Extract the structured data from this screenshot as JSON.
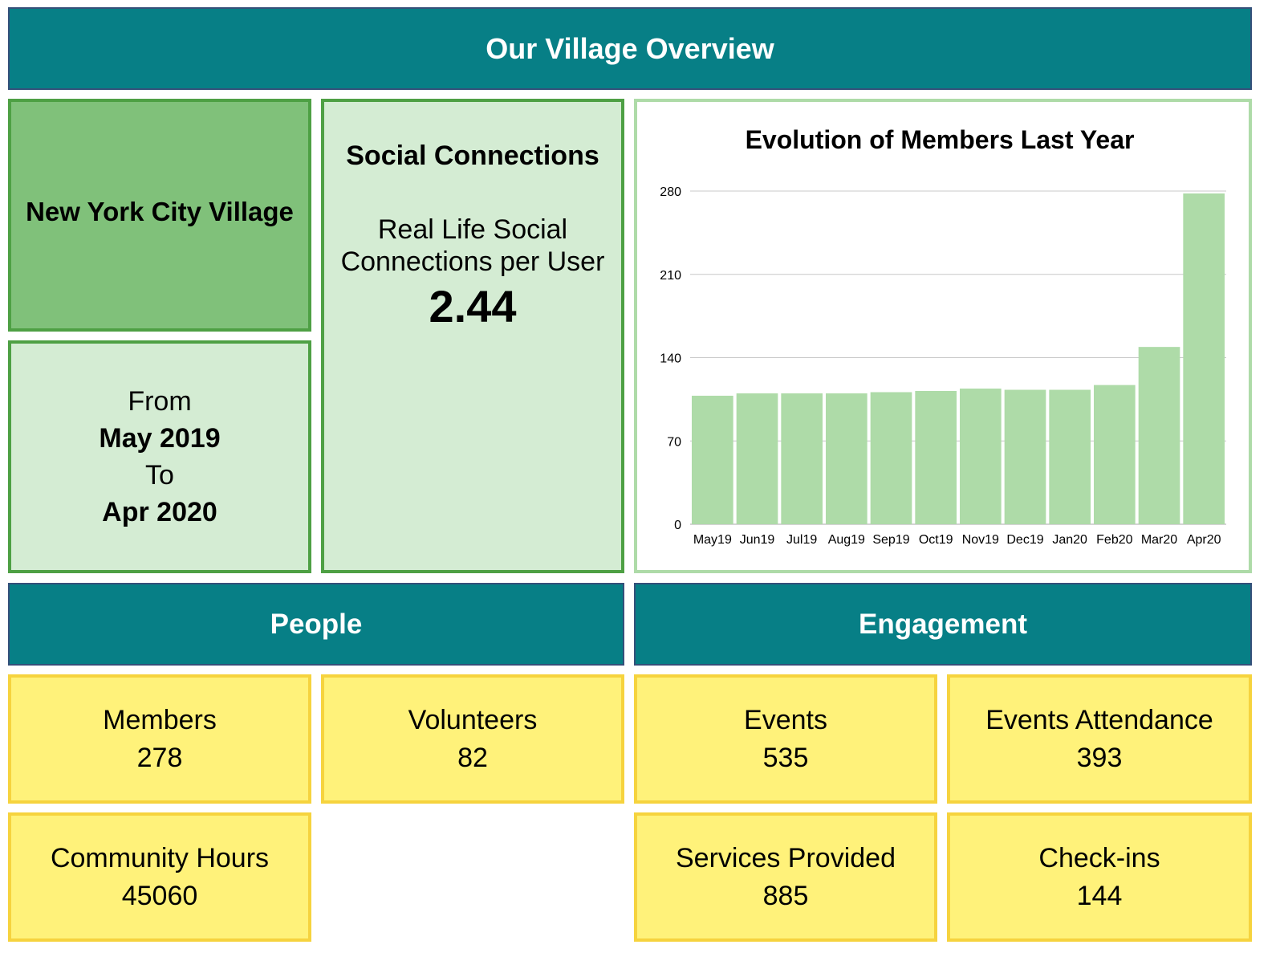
{
  "header": {
    "title": "Our Village Overview"
  },
  "village": {
    "name": "New York City Village"
  },
  "period": {
    "from_label": "From",
    "from_value": "May 2019",
    "to_label": "To",
    "to_value": "Apr 2020"
  },
  "social": {
    "title": "Social Connections",
    "subtitle_line1": "Real Life Social",
    "subtitle_line2": "Connections per User",
    "value": "2.44"
  },
  "sections": {
    "people": "People",
    "engagement": "Engagement"
  },
  "people": {
    "members": {
      "label": "Members",
      "value": "278"
    },
    "volunteers": {
      "label": "Volunteers",
      "value": "82"
    },
    "community_hours": {
      "label": "Community Hours",
      "value": "45060"
    }
  },
  "engagement": {
    "events": {
      "label": "Events",
      "value": "535"
    },
    "events_attendance": {
      "label": "Events Attendance",
      "value": "393"
    },
    "services_provided": {
      "label": "Services Provided",
      "value": "885"
    },
    "check_ins": {
      "label": "Check-ins",
      "value": "144"
    }
  },
  "colors": {
    "bar": "#aedba8",
    "header": "#077f86",
    "grid": "#c8c8c8"
  },
  "chart_data": {
    "type": "bar",
    "title": "Evolution of Members Last Year",
    "xlabel": "",
    "ylabel": "",
    "categories": [
      "May19",
      "Jun19",
      "Jul19",
      "Aug19",
      "Sep19",
      "Oct19",
      "Nov19",
      "Dec19",
      "Jan20",
      "Feb20",
      "Mar20",
      "Apr20"
    ],
    "values": [
      108,
      110,
      110,
      110,
      111,
      112,
      114,
      113,
      113,
      117,
      149,
      278
    ],
    "ylim": [
      0,
      280
    ],
    "yticks": [
      "0",
      "70",
      "140",
      "210",
      "280"
    ],
    "grid": true
  }
}
